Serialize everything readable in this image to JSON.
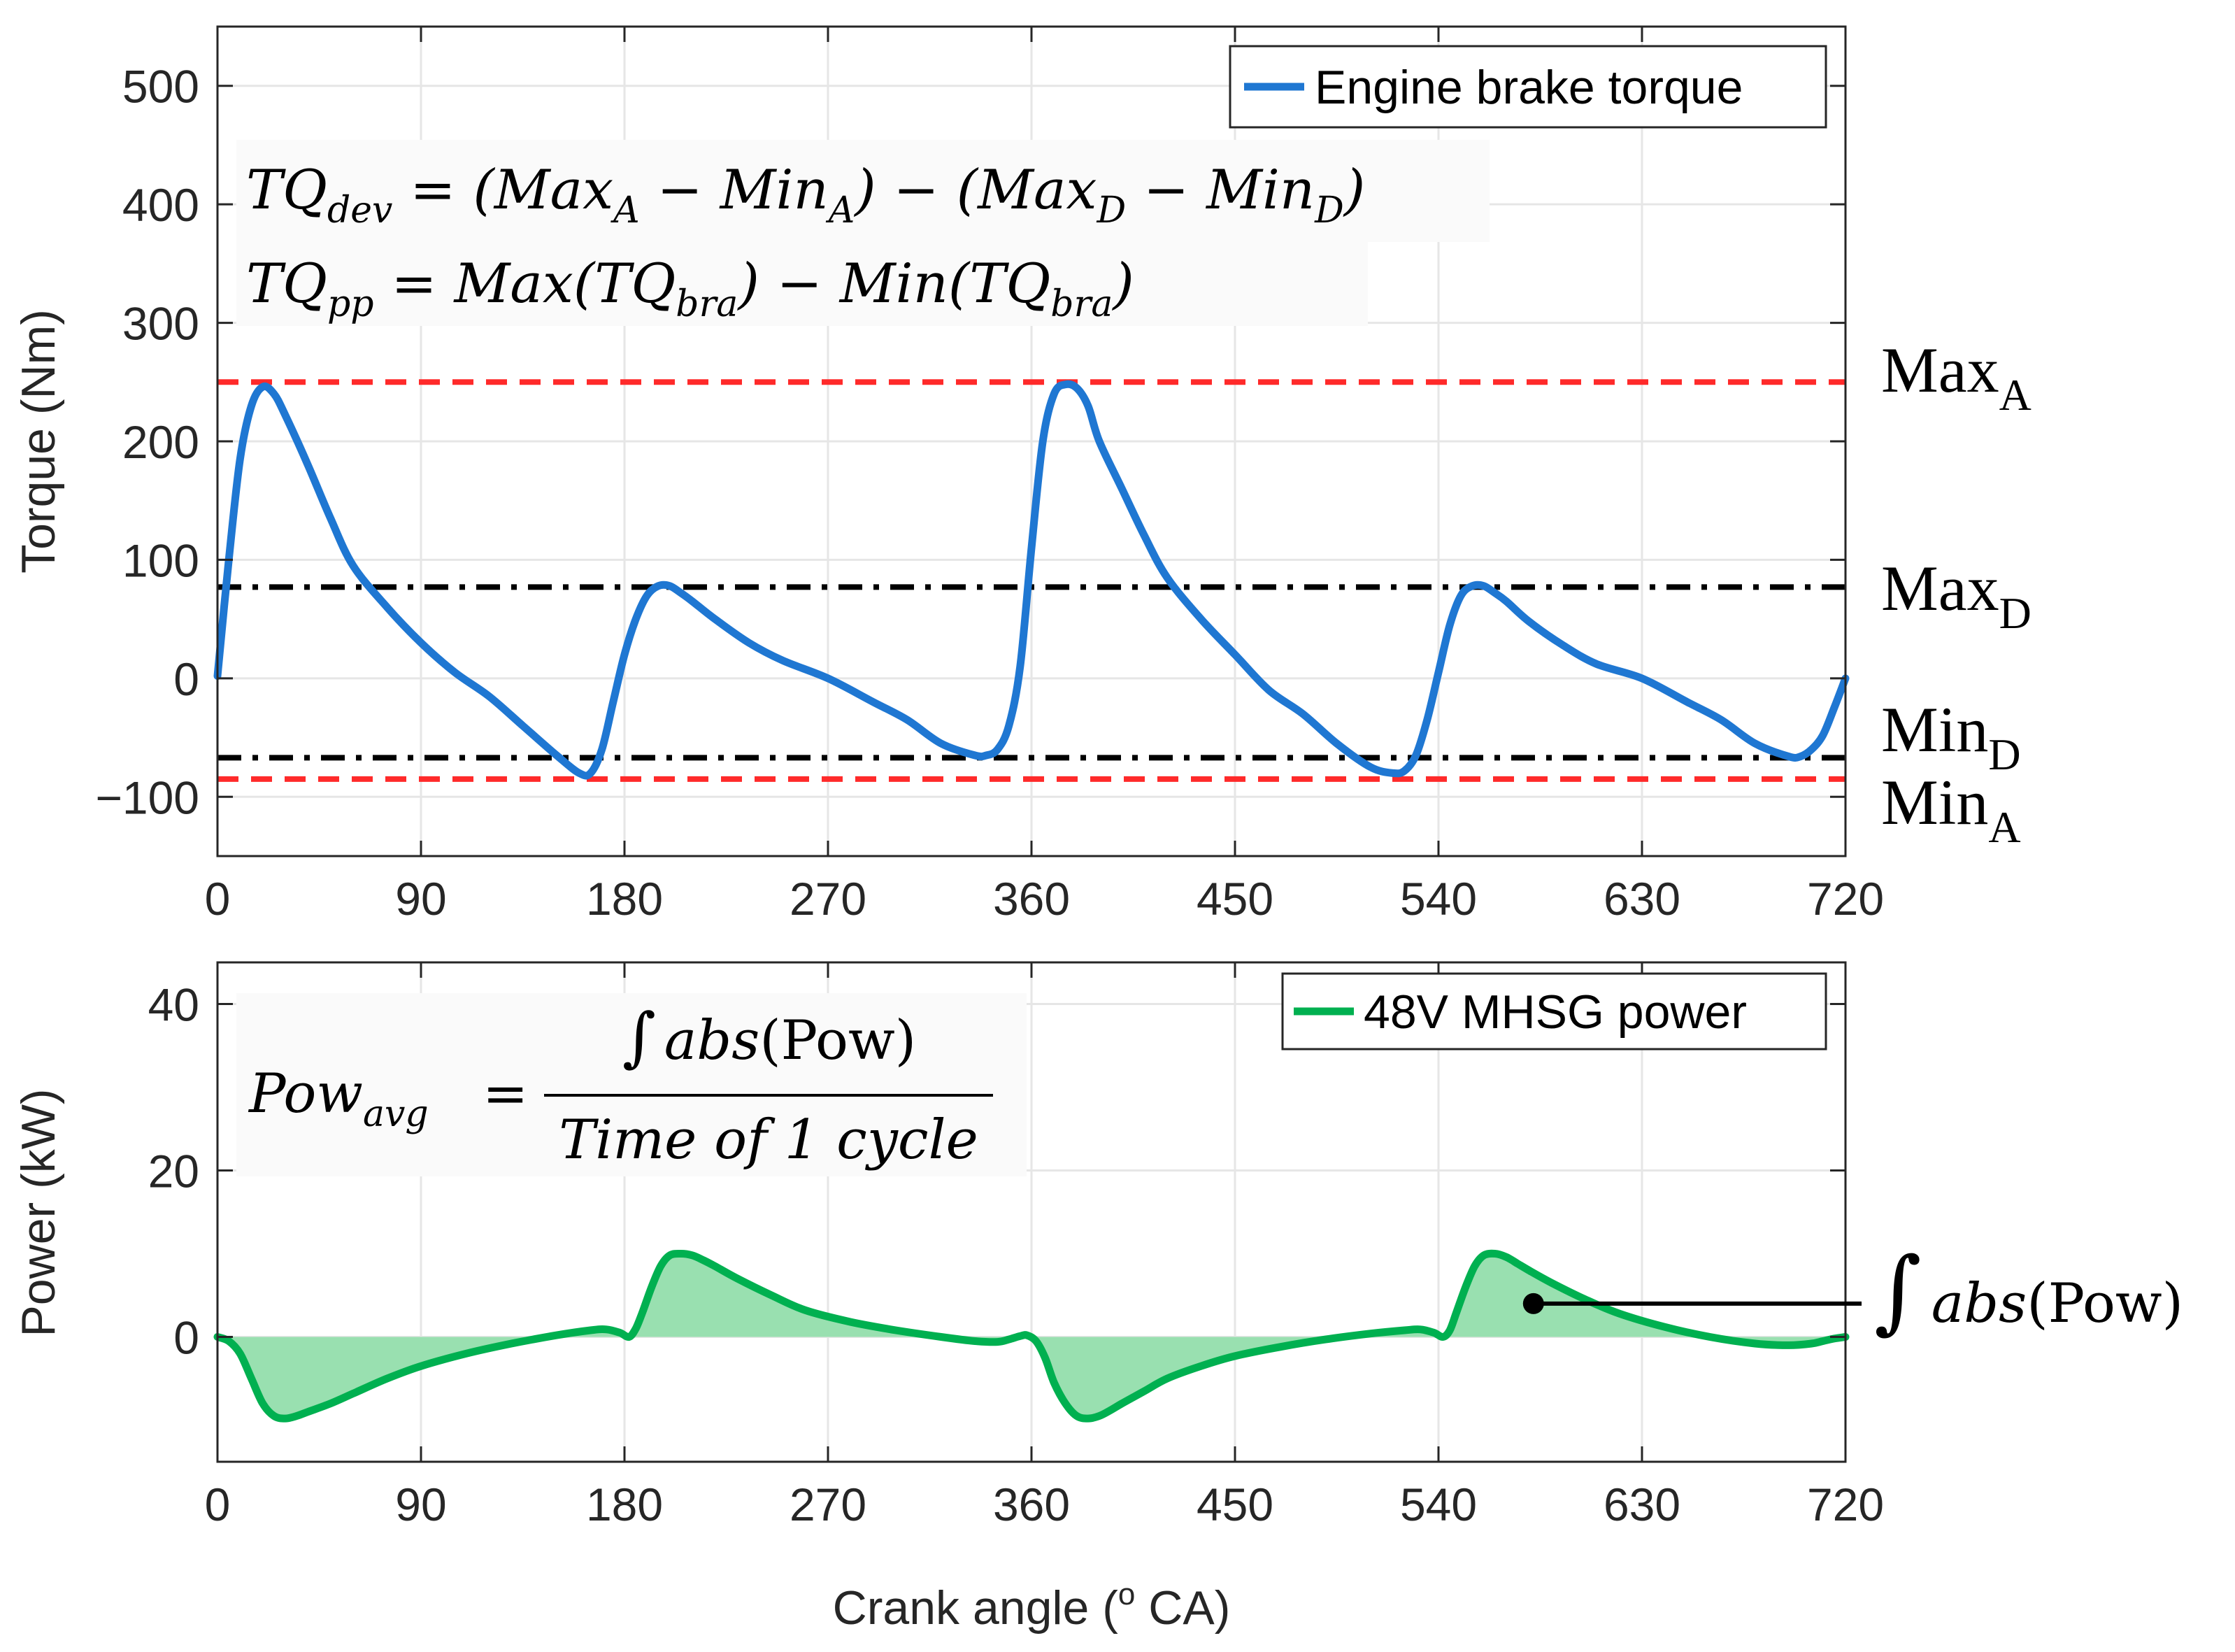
{
  "chart_data": [
    {
      "type": "line",
      "title": "",
      "xlabel": "",
      "ylabel": "Torque (Nm)",
      "xlim": [
        0,
        720
      ],
      "ylim": [
        -150,
        550
      ],
      "xticks": [
        0,
        90,
        180,
        270,
        360,
        450,
        540,
        630,
        720
      ],
      "yticks": [
        -100,
        0,
        100,
        200,
        300,
        400,
        500
      ],
      "xtick_labels": [
        "0",
        "90",
        "180",
        "270",
        "360",
        "450",
        "540",
        "630",
        "720"
      ],
      "ytick_labels": [
        "−100",
        "0",
        "100",
        "200",
        "300",
        "400",
        "500"
      ],
      "grid": true,
      "legend": "top-right",
      "series": [
        {
          "name": "Engine brake torque",
          "color": "#1f77d2",
          "x": [
            0,
            5,
            10,
            15,
            20,
            25,
            30,
            40,
            50,
            60,
            75,
            90,
            105,
            120,
            135,
            150,
            160,
            165,
            170,
            175,
            180,
            185,
            190,
            195,
            200,
            205,
            210,
            220,
            235,
            250,
            270,
            290,
            305,
            320,
            335,
            340,
            345,
            350,
            355,
            360,
            365,
            370,
            375,
            380,
            385,
            390,
            400,
            410,
            420,
            435,
            450,
            465,
            480,
            495,
            510,
            520,
            525,
            530,
            535,
            540,
            545,
            550,
            555,
            560,
            565,
            570,
            580,
            595,
            610,
            630,
            650,
            665,
            680,
            695,
            700,
            705,
            710,
            715,
            720
          ],
          "y": [
            2,
            100,
            185,
            230,
            246,
            240,
            222,
            180,
            135,
            95,
            60,
            30,
            5,
            -15,
            -40,
            -65,
            -80,
            -80,
            -60,
            -20,
            20,
            50,
            70,
            78,
            78,
            72,
            65,
            50,
            30,
            15,
            0,
            -20,
            -35,
            -55,
            -65,
            -65,
            -60,
            -40,
            10,
            110,
            200,
            240,
            248,
            245,
            230,
            200,
            160,
            120,
            85,
            50,
            20,
            -10,
            -30,
            -55,
            -75,
            -80,
            -78,
            -65,
            -35,
            5,
            45,
            70,
            78,
            78,
            72,
            65,
            48,
            28,
            12,
            0,
            -20,
            -35,
            -55,
            -66,
            -66,
            -60,
            -48,
            -25,
            0
          ]
        }
      ],
      "reference_lines": [
        {
          "label_main": "Max",
          "label_sub": "A",
          "y": 250,
          "style": "dashed",
          "color": "#ff2a2a"
        },
        {
          "label_main": "Max",
          "label_sub": "D",
          "y": 77,
          "style": "dashdot",
          "color": "#000000"
        },
        {
          "label_main": "Min",
          "label_sub": "D",
          "y": -67,
          "style": "dashdot",
          "color": "#000000"
        },
        {
          "label_main": "Min",
          "label_sub": "A",
          "y": -85,
          "style": "dashed",
          "color": "#ff2a2a"
        }
      ],
      "annotations": {
        "eq_dev": {
          "lhs": "TQ",
          "lhs_sub": "dev",
          "rhs": "= (Max",
          "a1": "A",
          "m1": " − Min",
          "a2": "A",
          "m2": ") − (Max",
          "a3": "D",
          "m3": " − Min",
          "a4": "D",
          "end": ")"
        },
        "eq_pp": {
          "lhs": "TQ",
          "lhs_sub": "pp",
          "rhs": " = Max(TQ",
          "s1": "bra",
          "m1": ") − Min(TQ",
          "s2": "bra",
          "end": ")"
        }
      }
    },
    {
      "type": "area",
      "title": "",
      "xlabel": "Crank angle (o CA)",
      "ylabel": "Power (kW)",
      "xlim": [
        0,
        720
      ],
      "ylim": [
        -15,
        45
      ],
      "xticks": [
        0,
        90,
        180,
        270,
        360,
        450,
        540,
        630,
        720
      ],
      "yticks": [
        0,
        20,
        40
      ],
      "xtick_labels": [
        "0",
        "90",
        "180",
        "270",
        "360",
        "450",
        "540",
        "630",
        "720"
      ],
      "ytick_labels": [
        "0",
        "20",
        "40"
      ],
      "grid": true,
      "legend": "top-right",
      "series": [
        {
          "name": "48V MHSG power",
          "color": "#00b050",
          "fill": "#99e0b0",
          "x": [
            0,
            5,
            10,
            15,
            20,
            25,
            30,
            35,
            40,
            50,
            60,
            75,
            90,
            110,
            130,
            150,
            165,
            172,
            178,
            182,
            185,
            188,
            192,
            196,
            200,
            205,
            210,
            215,
            220,
            230,
            245,
            260,
            280,
            300,
            320,
            335,
            345,
            350,
            355,
            358,
            362,
            366,
            370,
            375,
            380,
            385,
            390,
            395,
            400,
            410,
            420,
            435,
            450,
            470,
            490,
            510,
            525,
            532,
            538,
            542,
            545,
            548,
            552,
            556,
            560,
            565,
            570,
            575,
            580,
            590,
            605,
            620,
            640,
            660,
            680,
            695,
            705,
            710,
            715,
            720
          ],
          "y": [
            0,
            -0.5,
            -2,
            -5,
            -8,
            -9.5,
            -9.8,
            -9.5,
            -9,
            -8,
            -6.8,
            -5,
            -3.5,
            -2,
            -0.8,
            0.2,
            0.8,
            0.9,
            0.5,
            0,
            1,
            3,
            6,
            8.5,
            9.8,
            10,
            9.8,
            9.2,
            8.5,
            7,
            5,
            3.2,
            1.8,
            0.8,
            0,
            -0.5,
            -0.6,
            -0.3,
            0.1,
            0.2,
            -0.5,
            -2.5,
            -5.5,
            -8,
            -9.5,
            -9.8,
            -9.5,
            -8.8,
            -8,
            -6.5,
            -5,
            -3.5,
            -2.3,
            -1.2,
            -0.3,
            0.4,
            0.8,
            0.9,
            0.5,
            0,
            0.8,
            3,
            6,
            8.5,
            9.8,
            10,
            9.6,
            8.8,
            8,
            6.5,
            4.5,
            2.8,
            1.2,
            0,
            -0.8,
            -1,
            -0.8,
            -0.5,
            -0.2,
            0
          ]
        }
      ],
      "annotations": {
        "eq_avg": {
          "lhs": "Pow",
          "lhs_sub": "avg",
          "equals": "=",
          "numerator": "∫ abs(Pow)",
          "denominator": "Time of 1 cycle"
        },
        "integral_label": "∫ abs(Pow)",
        "integral_point": {
          "x": 582,
          "y": 4
        }
      }
    }
  ],
  "top_panel": {
    "legend_label": "Engine brake torque",
    "eq1": {
      "lhs": "TQ",
      "lhs_sub": "dev",
      "rhs": " = (Max",
      "a1": "A",
      "m1": " − Min",
      "a2": "A",
      "m2": ") − (Max",
      "a3": "D",
      "m3": " − Min",
      "a4": "D",
      "end": ")"
    },
    "eq2": {
      "lhs": "TQ",
      "lhs_sub": "pp",
      "rhs": " = Max(TQ",
      "s1": "bra",
      "m1": ") − Min(TQ",
      "s2": "bra",
      "end": ")"
    },
    "ref_maxA": {
      "main": "Max",
      "sub": "A"
    },
    "ref_maxD": {
      "main": "Max",
      "sub": "D"
    },
    "ref_minD": {
      "main": "Min",
      "sub": "D"
    },
    "ref_minA": {
      "main": "Min",
      "sub": "A"
    }
  },
  "bottom_panel": {
    "legend_label": "48V MHSG power",
    "eq_lhs": "Pow",
    "eq_lhs_sub": "avg",
    "eq_equals": "=",
    "eq_numerator_int": "∫",
    "eq_numerator_fn": "abs",
    "eq_numerator_arg": "(Pow)",
    "eq_denominator": "Time of 1 cycle",
    "integral_int": "∫",
    "integral_fn": "abs",
    "integral_arg": "(Pow)",
    "xlabel_prefix": "Crank angle (",
    "xlabel_sup": "o",
    "xlabel_suffix": " CA)"
  }
}
